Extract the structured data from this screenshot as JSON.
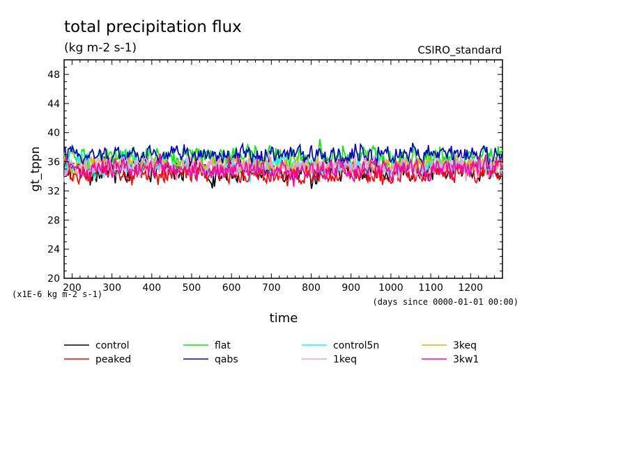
{
  "chart_data": {
    "type": "line",
    "title": "total precipitation flux",
    "subtitle": "(kg m-2 s-1)",
    "source_label": "CSIRO_standard",
    "ylabel": "gt_tppn",
    "xlabel": "time",
    "y_units_note": "(x1E-6 kg m-2 s-1)",
    "x_units_note": "(days since 0000-01-01 00:00)",
    "xlim": [
      180,
      1280
    ],
    "ylim": [
      20,
      50
    ],
    "x_ticks": [
      200,
      300,
      400,
      500,
      600,
      700,
      800,
      900,
      1000,
      1100,
      1200
    ],
    "x_tick_labels": [
      "200",
      "300",
      "400",
      "500",
      "600",
      "700",
      "800",
      "900",
      "1000",
      "1100",
      "1200"
    ],
    "y_ticks": [
      20,
      24,
      28,
      32,
      36,
      40,
      44,
      48
    ],
    "y_tick_labels": [
      "20",
      "24",
      "28",
      "32",
      "36",
      "40",
      "44",
      "48"
    ],
    "grid": false,
    "legend_placement": "below",
    "series": [
      {
        "name": "control",
        "color": "#000000",
        "mean": 34.8,
        "amplitude": 1.9,
        "min": 32.3,
        "max": 39.0
      },
      {
        "name": "flat",
        "color": "#00ee00",
        "mean": 36.6,
        "amplitude": 2.0,
        "min": 32.0,
        "max": 41.8
      },
      {
        "name": "control5n",
        "color": "#00ffff",
        "mean": 35.3,
        "amplitude": 1.7,
        "min": 32.0,
        "max": 38.8
      },
      {
        "name": "3keq",
        "color": "#f0b000",
        "mean": 35.5,
        "amplitude": 1.6,
        "min": 31.0,
        "max": 39.0
      },
      {
        "name": "peaked",
        "color": "#ff0000",
        "mean": 34.3,
        "amplitude": 1.6,
        "min": 31.8,
        "max": 37.5
      },
      {
        "name": "qabs",
        "color": "#0000d0",
        "mean": 37.0,
        "amplitude": 1.6,
        "min": 33.5,
        "max": 40.6
      },
      {
        "name": "1keq",
        "color": "#e8a0e0",
        "mean": 35.2,
        "amplitude": 1.7,
        "min": 31.5,
        "max": 38.2
      },
      {
        "name": "3kw1",
        "color": "#ff00aa",
        "mean": 35.0,
        "amplitude": 1.8,
        "min": 32.0,
        "max": 38.3
      }
    ]
  }
}
